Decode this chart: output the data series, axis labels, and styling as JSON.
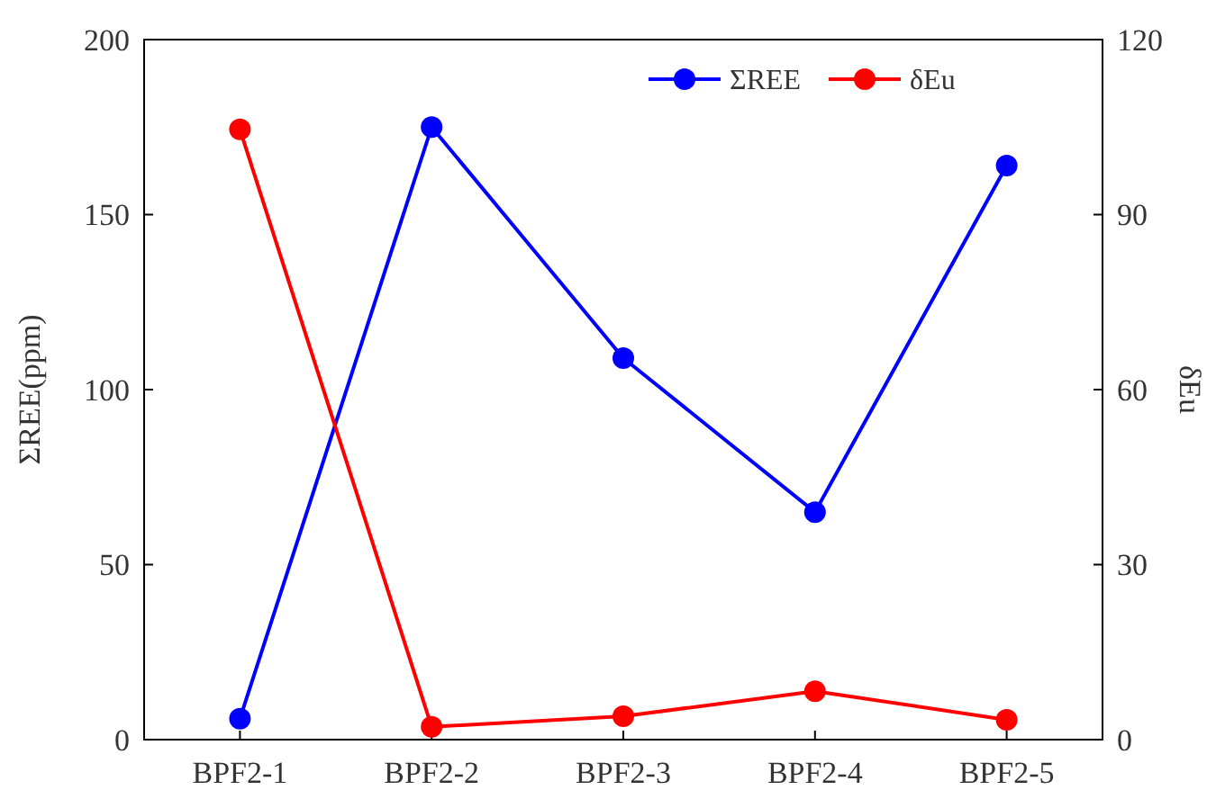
{
  "chart_data": {
    "type": "line",
    "categories": [
      "BPF2-1",
      "BPF2-2",
      "BPF2-3",
      "BPF2-4",
      "BPF2-5"
    ],
    "ylabel": "ΣREE(ppm)",
    "y2label": "δEu",
    "ylim": [
      0,
      200
    ],
    "yticks": [
      0,
      50,
      100,
      150,
      200
    ],
    "y2lim": [
      0,
      120
    ],
    "y2ticks": [
      0,
      30,
      60,
      90,
      120
    ],
    "series": [
      {
        "name": "ΣREE",
        "color": "#0000ff",
        "values": [
          6,
          175,
          109,
          65,
          164
        ]
      },
      {
        "name": "δEu",
        "color": "#ff0000",
        "axis": "y2",
        "values": [
          104.6,
          2.2,
          4,
          8.3,
          3.4
        ]
      }
    ],
    "marker": "circle",
    "legend": "top right",
    "grid": false
  }
}
